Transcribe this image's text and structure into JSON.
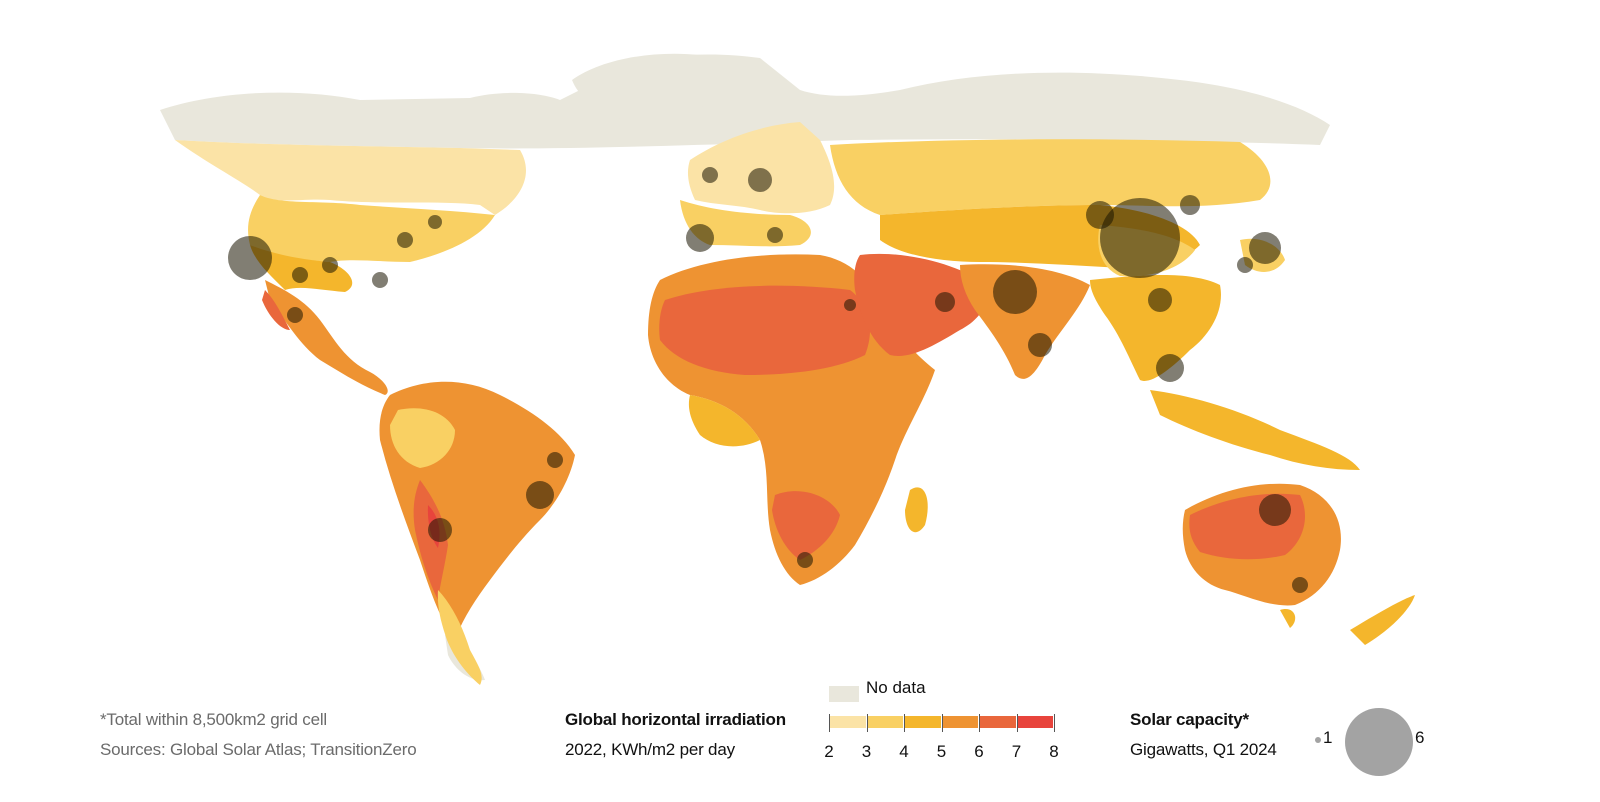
{
  "colors": {
    "no_data": "#e9e7dc",
    "scale": [
      "#fbe3a6",
      "#f9d063",
      "#f4b62c",
      "#ee9332",
      "#e9673c",
      "#e8443c"
    ],
    "bubble": "#a3a3a3",
    "bubble_on_map": "#1a1400"
  },
  "footnote": {
    "line1": "*Total within 8,500km2 grid cell",
    "line2": "Sources: Global Solar Atlas; TransitionZero"
  },
  "nodata_legend": {
    "label": "No data"
  },
  "irradiation_legend": {
    "title": "Global horizontal irradiation",
    "subtitle": "2022, KWh/m2 per day",
    "ticks": [
      "2",
      "3",
      "4",
      "5",
      "6",
      "7",
      "8"
    ]
  },
  "capacity_legend": {
    "title": "Solar capacity*",
    "subtitle": "Gigawatts, Q1 2024",
    "small_label": "1",
    "large_label": "6"
  },
  "map_icon": "world-map"
}
